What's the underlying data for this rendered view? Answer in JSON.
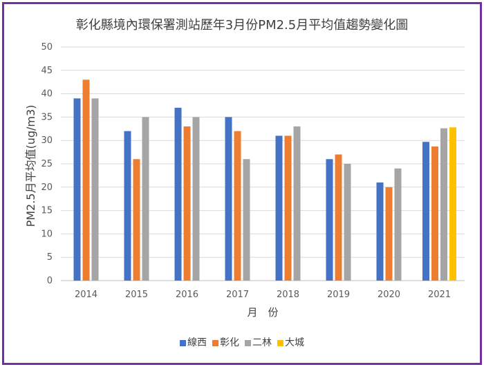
{
  "chart_data": {
    "type": "bar",
    "title": "彰化縣境內環保署測站歷年3月份PM2.5月平均值趨勢變化圖",
    "xlabel": "月　份",
    "ylabel": "PM2.5月平均值(ug/m3)",
    "ylim": [
      0,
      50
    ],
    "yticks": [
      0,
      5,
      10,
      15,
      20,
      25,
      30,
      35,
      40,
      45,
      50
    ],
    "categories": [
      "2014",
      "2015",
      "2016",
      "2017",
      "2018",
      "2019",
      "2020",
      "2021"
    ],
    "series": [
      {
        "name": "線西",
        "color": "#4472c4",
        "values": [
          39,
          32,
          37,
          35,
          31,
          26,
          21,
          29.7
        ]
      },
      {
        "name": "彰化",
        "color": "#ed7d31",
        "values": [
          43,
          26,
          33,
          32,
          31,
          27,
          20,
          28.7
        ]
      },
      {
        "name": "二林",
        "color": "#a5a5a5",
        "values": [
          39,
          35,
          35,
          26,
          33,
          25,
          24,
          32.6
        ]
      },
      {
        "name": "大城",
        "color": "#ffc000",
        "values": [
          null,
          null,
          null,
          null,
          null,
          null,
          null,
          32.8
        ]
      }
    ],
    "legend_position": "bottom",
    "grid": true
  }
}
